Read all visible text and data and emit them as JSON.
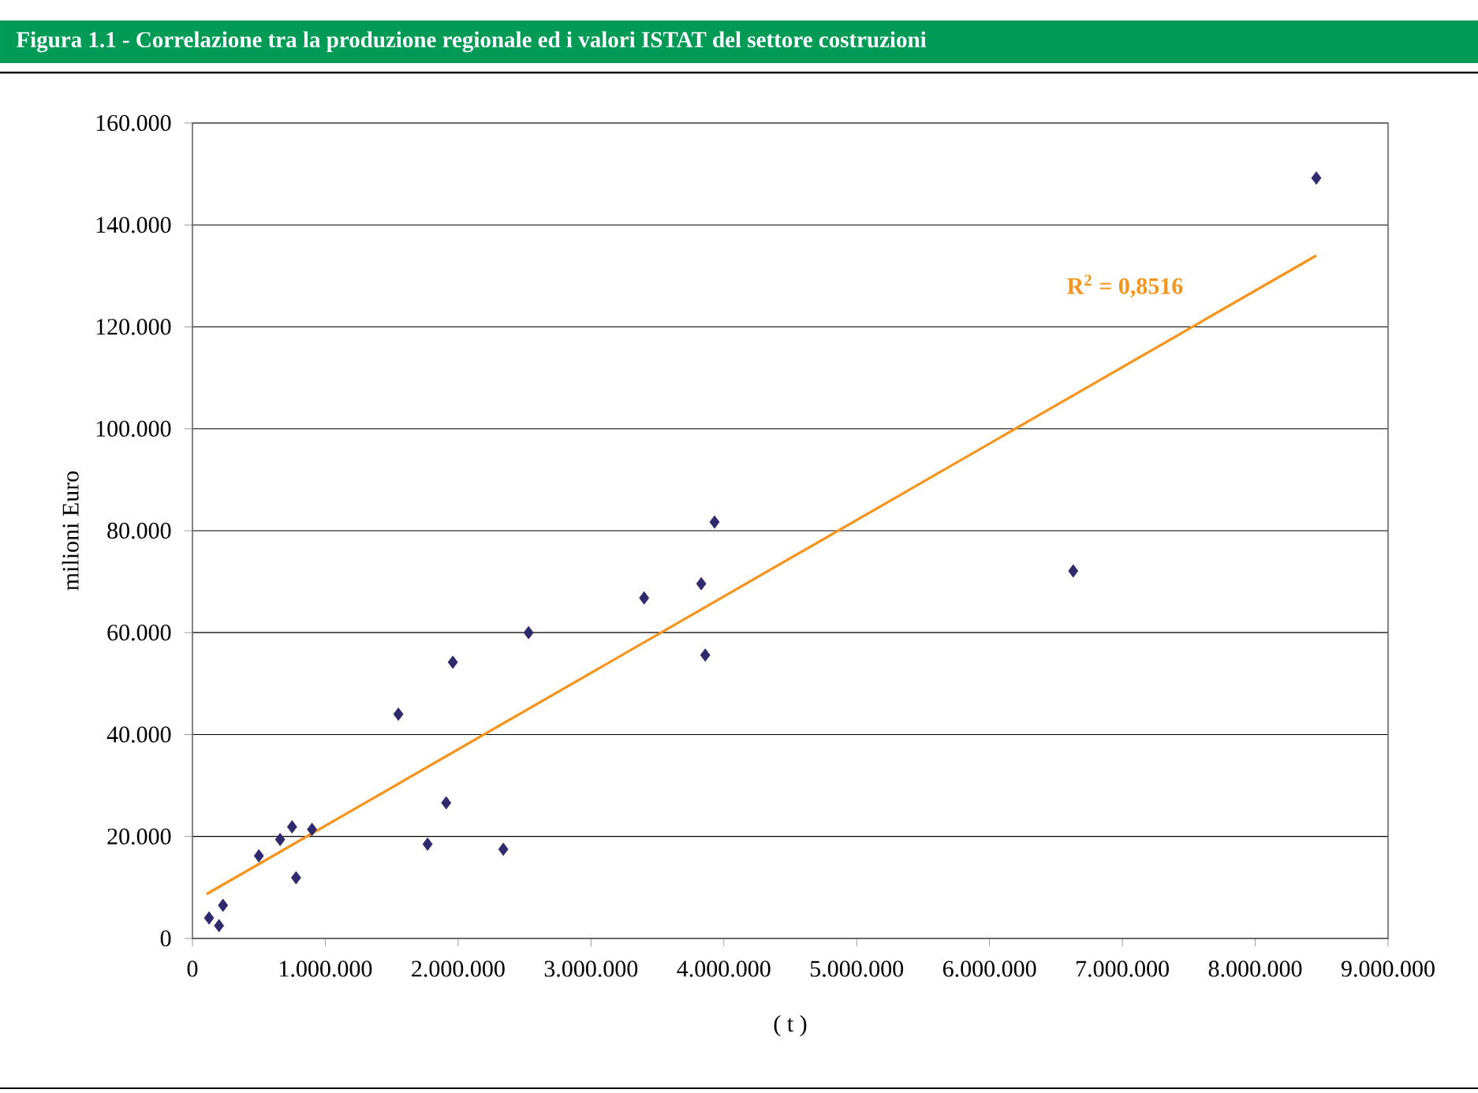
{
  "chart_data": {
    "type": "scatter",
    "title": "Figura 1.1 - Correlazione tra la produzione regionale ed i valori ISTAT del settore costruzioni",
    "xlabel": "( t )",
    "ylabel": "milioni Euro",
    "annotations": [
      "R$^{2}$ = 0,8516"
    ],
    "xlim": [
      0,
      9000000
    ],
    "ylim": [
      0,
      160000
    ],
    "xticks": [
      0,
      {
        "value": 1000000,
        "label": "1.000.000"
      },
      {
        "value": 2000000,
        "label": "2.000.000"
      },
      {
        "value": 3000000,
        "label": "3.000.000"
      },
      {
        "value": 4000000,
        "label": "4.000.000"
      },
      {
        "value": 5000000,
        "label": "5.000.000"
      },
      {
        "value": 6000000,
        "label": "6.000.000"
      },
      {
        "value": 7000000,
        "label": "7.000.000"
      },
      {
        "value": 8000000,
        "label": "8.000.000"
      },
      {
        "value": 9000000,
        "label": "9.000.000"
      }
    ],
    "yticks": [
      0,
      {
        "value": 20000,
        "label": "20.000"
      },
      {
        "value": 40000,
        "label": "40.000"
      },
      {
        "value": 60000,
        "label": "60.000"
      },
      {
        "value": 80000,
        "label": "80.000"
      },
      {
        "value": 100000,
        "label": "100.000"
      },
      {
        "value": 120000,
        "label": "120.000"
      },
      {
        "value": 140000,
        "label": "140.000"
      },
      {
        "value": 160000,
        "label": "160.000"
      }
    ],
    "grid": "y",
    "marker": "diamond",
    "series": [
      {
        "color": "#2e2a6e",
        "x": [
          125000,
          200000,
          230000,
          500000,
          660000,
          750000,
          780000,
          900000,
          1550000,
          1770000,
          1910000,
          1960000,
          2340000,
          2530000,
          3400000,
          3830000,
          3860000,
          3930000,
          6630000,
          8460000
        ],
        "values": [
          4000,
          2500,
          6500,
          16200,
          19400,
          21900,
          11900,
          21400,
          44000,
          18500,
          26600,
          54200,
          17500,
          60000,
          66800,
          69600,
          55600,
          81700,
          72100,
          149200
        ]
      },
      {
        "type": "line",
        "marker": "none",
        "color": "#f7941d",
        "x": [
          107000,
          8460000
        ],
        "values": [
          8700,
          134000
        ]
      }
    ]
  }
}
